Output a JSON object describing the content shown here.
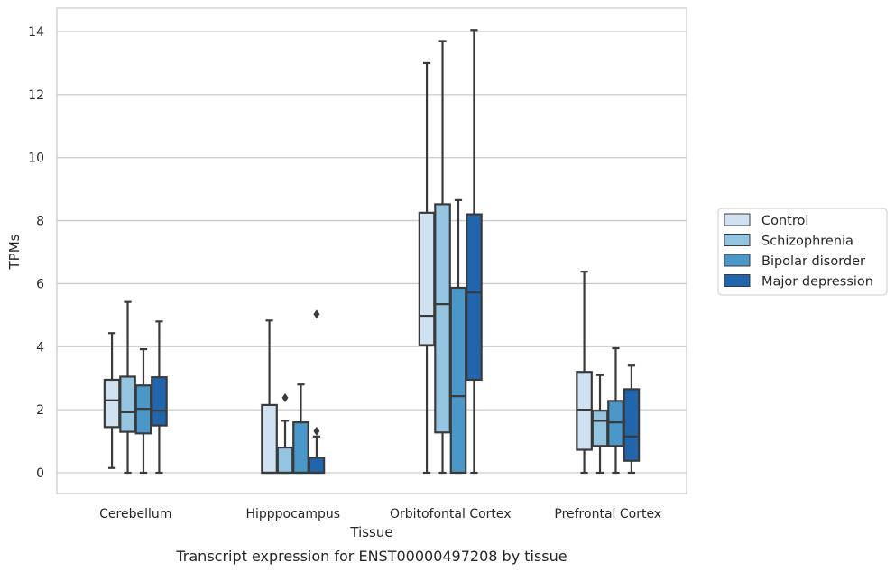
{
  "caption": "Transcript expression for ENST00000497208 by tissue",
  "chart_data": {
    "type": "box",
    "xlabel": "Tissue",
    "ylabel": "TPMs",
    "ylim": [
      -0.7,
      14.75
    ],
    "yticks": [
      0,
      2,
      4,
      6,
      8,
      10,
      12,
      14
    ],
    "grid": "horizontal",
    "legend_placement": "center-right, outside plot",
    "categories": [
      "Cerebellum",
      "Hipppocampus",
      "Orbitofontal Cortex",
      "Prefrontal Cortex"
    ],
    "series": [
      {
        "name": "Control",
        "color": "#d0e1f2",
        "boxes": [
          {
            "whislo": 0.15,
            "q1": 1.45,
            "med": 2.3,
            "q3": 2.95,
            "whishi": 4.43,
            "fliers": []
          },
          {
            "whislo": 0.0,
            "q1": 0.0,
            "med": 0.0,
            "q3": 2.15,
            "whishi": 4.83,
            "fliers": []
          },
          {
            "whislo": 0.0,
            "q1": 4.05,
            "med": 4.98,
            "q3": 8.25,
            "whishi": 13.0,
            "fliers": []
          },
          {
            "whislo": 0.0,
            "q1": 0.73,
            "med": 2.0,
            "q3": 3.2,
            "whishi": 6.38,
            "fliers": []
          }
        ]
      },
      {
        "name": "Schizophrenia",
        "color": "#94c4df",
        "boxes": [
          {
            "whislo": 0.0,
            "q1": 1.3,
            "med": 1.92,
            "q3": 3.05,
            "whishi": 5.42,
            "fliers": []
          },
          {
            "whislo": 0.0,
            "q1": 0.0,
            "med": 0.0,
            "q3": 0.8,
            "whishi": 1.65,
            "fliers": [
              2.38
            ]
          },
          {
            "whislo": 0.0,
            "q1": 1.28,
            "med": 5.35,
            "q3": 8.52,
            "whishi": 13.7,
            "fliers": []
          },
          {
            "whislo": 0.0,
            "q1": 0.85,
            "med": 1.65,
            "q3": 1.97,
            "whishi": 3.1,
            "fliers": []
          }
        ]
      },
      {
        "name": "Bipolar disorder",
        "color": "#4a98c9",
        "boxes": [
          {
            "whislo": 0.0,
            "q1": 1.25,
            "med": 2.03,
            "q3": 2.77,
            "whishi": 3.92,
            "fliers": []
          },
          {
            "whislo": 0.0,
            "q1": 0.0,
            "med": 0.0,
            "q3": 1.6,
            "whishi": 2.8,
            "fliers": []
          },
          {
            "whislo": 0.0,
            "q1": 0.0,
            "med": 2.43,
            "q3": 5.87,
            "whishi": 8.65,
            "fliers": []
          },
          {
            "whislo": 0.0,
            "q1": 0.85,
            "med": 1.6,
            "q3": 2.28,
            "whishi": 3.95,
            "fliers": []
          }
        ]
      },
      {
        "name": "Major depression",
        "color": "#2166ac",
        "boxes": [
          {
            "whislo": 0.0,
            "q1": 1.5,
            "med": 1.97,
            "q3": 3.03,
            "whishi": 4.8,
            "fliers": []
          },
          {
            "whislo": 0.0,
            "q1": 0.0,
            "med": 0.0,
            "q3": 0.48,
            "whishi": 1.15,
            "fliers": [
              1.32,
              5.03
            ]
          },
          {
            "whislo": 0.0,
            "q1": 2.95,
            "med": 5.72,
            "q3": 8.2,
            "whishi": 14.05,
            "fliers": []
          },
          {
            "whislo": 0.0,
            "q1": 0.38,
            "med": 1.15,
            "q3": 2.65,
            "whishi": 3.4,
            "fliers": []
          }
        ]
      }
    ]
  }
}
